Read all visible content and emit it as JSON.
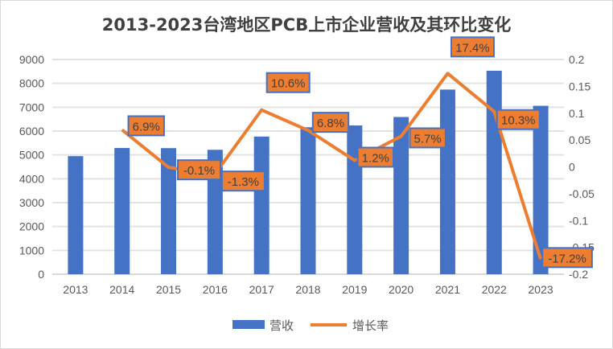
{
  "chart_data": {
    "type": "bar+line",
    "title": "2013-2023台湾地区PCB上市企业营收及其环比变化",
    "categories": [
      "2013",
      "2014",
      "2015",
      "2016",
      "2017",
      "2018",
      "2019",
      "2020",
      "2021",
      "2022",
      "2023"
    ],
    "series": [
      {
        "name": "营收",
        "type": "bar",
        "axis": "left",
        "color": "#4472C4",
        "values": [
          4950,
          5290,
          5285,
          5215,
          5770,
          6160,
          6235,
          6590,
          7740,
          8530,
          7060
        ]
      },
      {
        "name": "增长率",
        "type": "line",
        "axis": "right",
        "color": "#ED7D31",
        "values": [
          null,
          0.069,
          -0.001,
          -0.013,
          0.106,
          0.068,
          0.012,
          0.057,
          0.174,
          0.103,
          -0.172
        ],
        "data_labels": [
          null,
          "6.9%",
          "-0.1%",
          "-1.3%",
          "10.6%",
          "6.8%",
          "1.2%",
          "5.7%",
          "17.4%",
          "10.3%",
          "-17.2%"
        ]
      }
    ],
    "ylim": [
      0,
      9000
    ],
    "yticks": [
      "0",
      "1000",
      "2000",
      "3000",
      "4000",
      "5000",
      "6000",
      "7000",
      "8000",
      "9000"
    ],
    "y2lim": [
      -0.2,
      0.2
    ],
    "y2ticks": [
      "-0.2",
      "-0.15",
      "-0.1",
      "-0.05",
      "0",
      "0.05",
      "0.1",
      "0.15",
      "0.2"
    ],
    "grid": true,
    "legend_position": "bottom"
  }
}
